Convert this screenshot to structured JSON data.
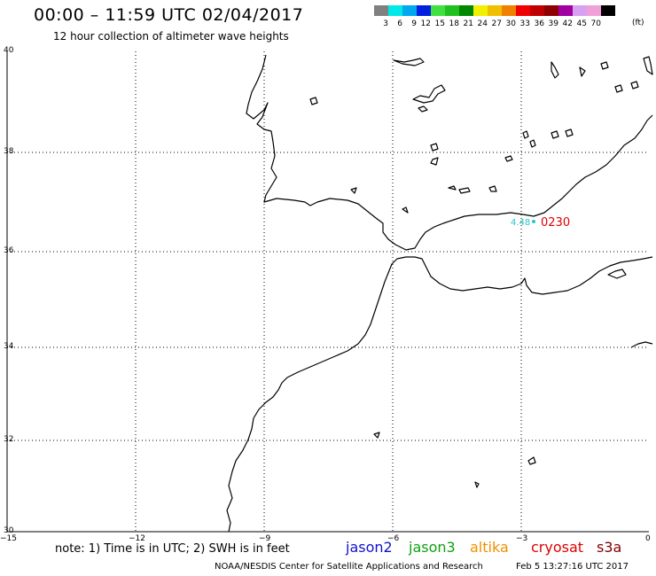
{
  "header": {
    "title": "00:00 – 11:59 UTC 02/04/2017",
    "subtitle": "12 hour collection of altimeter wave heights"
  },
  "legend": {
    "colors": [
      "#808080",
      "#00e8e8",
      "#00a8f0",
      "#0020e0",
      "#40e040",
      "#20c020",
      "#008800",
      "#f0f000",
      "#f0c000",
      "#f08000",
      "#f00000",
      "#c00000",
      "#900000",
      "#a000a0",
      "#d8a0f0",
      "#f0a0d8",
      "#000000"
    ],
    "labels": [
      "3",
      "6",
      "9",
      "12",
      "15",
      "18",
      "21",
      "24",
      "27",
      "30",
      "33",
      "36",
      "39",
      "42",
      "45",
      "70"
    ],
    "unit": "(ft)"
  },
  "axes": {
    "lat_labels": [
      "40",
      "38",
      "36",
      "34",
      "32",
      "30"
    ],
    "lon_labels": [
      "−15",
      "−12",
      "−9",
      "−6",
      "−3",
      "0"
    ]
  },
  "observation": {
    "swh": "4.48",
    "time": "0230"
  },
  "footer": {
    "note": "note: 1) Time is in UTC; 2) SWH is in feet",
    "satellites": [
      {
        "name": "jason2",
        "color": "#1010d0"
      },
      {
        "name": "jason3",
        "color": "#10a010"
      },
      {
        "name": "altika",
        "color": "#f09000"
      },
      {
        "name": "cryosat",
        "color": "#e00000"
      },
      {
        "name": "s3a",
        "color": "#800000"
      }
    ],
    "credit": "NOAA/NESDIS Center for Satellite Applications and Research",
    "generated": "Feb  5 13:27:16 UTC 2017"
  }
}
